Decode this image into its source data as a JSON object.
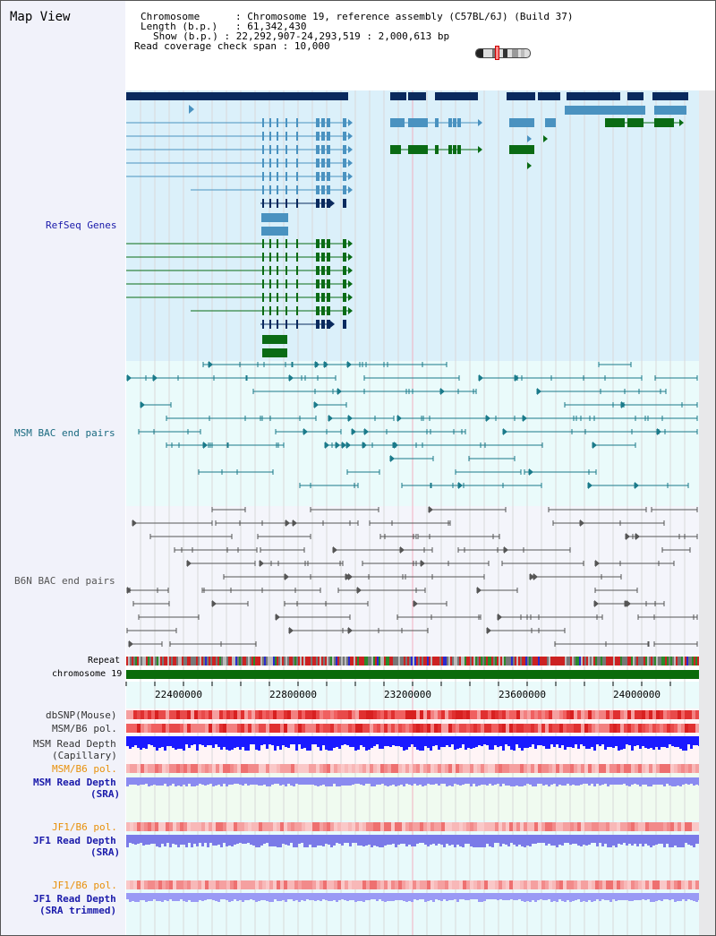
{
  "title": "Map View",
  "header": {
    "chromosome_key": "Chromosome",
    "chromosome_val": "Chromosome 19, reference assembly (C57BL/6J) (Build 37)",
    "length_key": "Length (b.p.)",
    "length_val": "61,342,430",
    "show_key": "Show (b.p.)",
    "show_val": "22,292,907-24,293,519 : 2,000,613 bp",
    "coverage_key": "Read coverage check span",
    "coverage_val": "10,000"
  },
  "tracks": {
    "refseq": "RefSeq Genes",
    "msm_bac": "MSM BAC end pairs",
    "b6n_bac": "B6N BAC end pairs",
    "repeat": "Repeat",
    "chromosome": "chromosome 19",
    "dbsnp": "dbSNP(Mouse)",
    "msm_b6_pol_1": "MSM/B6 pol.",
    "msm_read_depth_1": "MSM Read Depth",
    "msm_read_depth_1b": "(Capillary)",
    "msm_b6_pol_2": "MSM/B6 pol.",
    "msm_read_depth_2": "MSM Read Depth",
    "msm_read_depth_2b": "(SRA)",
    "jf1_b6_pol_1": "JF1/B6 pol.",
    "jf1_read_depth_1": "JF1 Read Depth",
    "jf1_read_depth_1b": "(SRA)",
    "jf1_b6_pol_2": "JF1/B6 pol.",
    "jf1_read_depth_2": "JF1 Read Depth",
    "jf1_read_depth_2b": "(SRA trimmed)"
  },
  "axis": {
    "ticks": [
      "22400000",
      "22800000",
      "23200000",
      "23600000",
      "24000000"
    ]
  },
  "colors": {
    "refseq_bg": "#dbf0fa",
    "msm_bg": "#eafbfb",
    "b6n_bg": "#f4f5fb",
    "refseq_dark": "#0a2a5e",
    "refseq_light": "#4a92c0",
    "refseq_green": "#0a6b14",
    "msm_color": "#1a7a8a",
    "b6n_color": "#555555",
    "label_blue": "#1a1aaa",
    "label_teal": "#1a6a80",
    "label_orange": "#e8900a",
    "chrom_green": "#0a6b0a"
  }
}
